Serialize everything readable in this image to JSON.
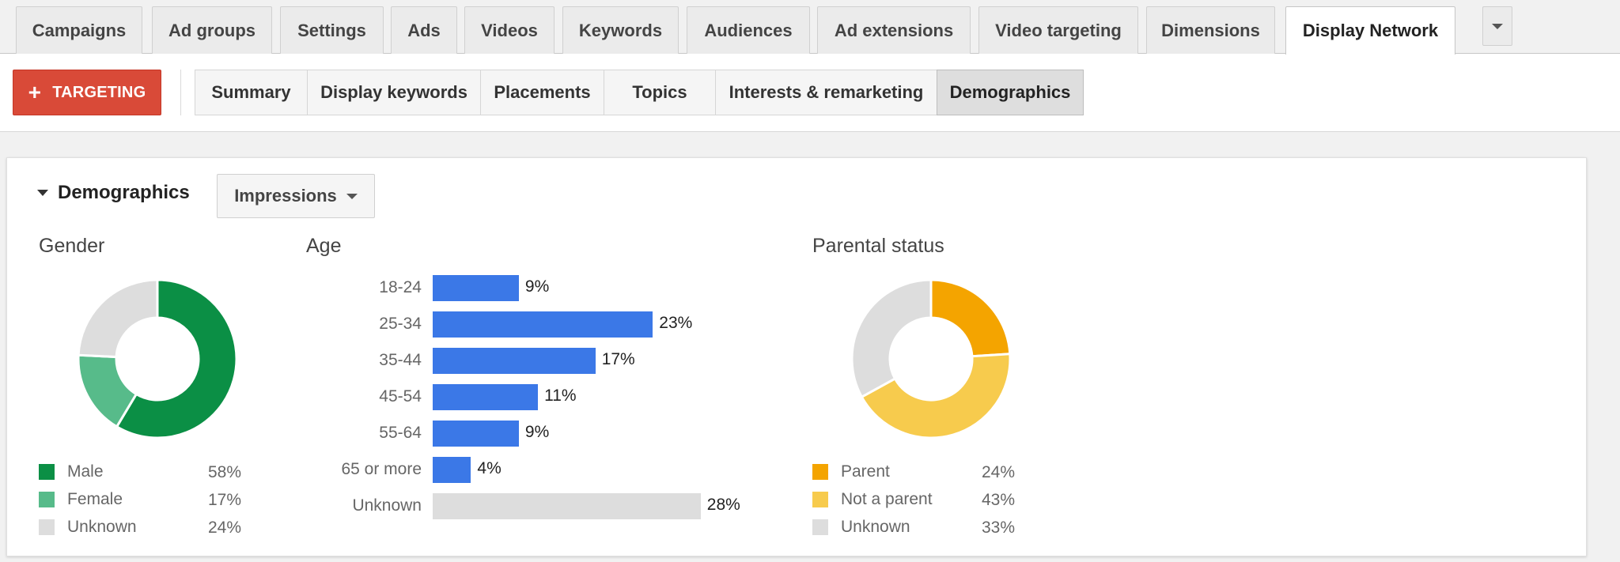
{
  "tabs": [
    "Campaigns",
    "Ad groups",
    "Settings",
    "Ads",
    "Videos",
    "Keywords",
    "Audiences",
    "Ad extensions",
    "Video targeting",
    "Dimensions",
    "Display Network"
  ],
  "active_tab": "Display Network",
  "more_icon": "chevron-down-icon",
  "toolbar": {
    "targeting_label": "TARGETING",
    "targeting_color": "#d94a38",
    "segments": [
      "Summary",
      "Display keywords",
      "Placements",
      "Topics",
      "Interests & remarketing",
      "Demographics"
    ],
    "active_segment": "Demographics"
  },
  "section": {
    "title": "Demographics",
    "metric": "Impressions"
  },
  "chart_data": [
    {
      "type": "pie",
      "title": "Gender",
      "donut": true,
      "labels": [
        "Male",
        "Female",
        "Unknown"
      ],
      "values": [
        58,
        17,
        24
      ],
      "value_labels": [
        "58%",
        "17%",
        "24%"
      ],
      "colors": [
        "#0b8f45",
        "#57bb8a",
        "#dddddd"
      ]
    },
    {
      "type": "bar",
      "orientation": "horizontal",
      "title": "Age",
      "categories": [
        "18-24",
        "25-34",
        "35-44",
        "45-54",
        "55-64",
        "65 or more",
        "Unknown"
      ],
      "values": [
        9,
        23,
        17,
        11,
        9,
        4,
        28
      ],
      "value_labels": [
        "9%",
        "23%",
        "17%",
        "11%",
        "9%",
        "4%",
        "28%"
      ],
      "colors": [
        "#3b78e7",
        "#3b78e7",
        "#3b78e7",
        "#3b78e7",
        "#3b78e7",
        "#3b78e7",
        "#dddddd"
      ]
    },
    {
      "type": "pie",
      "title": "Parental status",
      "donut": true,
      "labels": [
        "Parent",
        "Not a parent",
        "Unknown"
      ],
      "values": [
        24,
        43,
        33
      ],
      "value_labels": [
        "24%",
        "43%",
        "33%"
      ],
      "colors": [
        "#f4a400",
        "#f7cb4d",
        "#dddddd"
      ]
    }
  ]
}
